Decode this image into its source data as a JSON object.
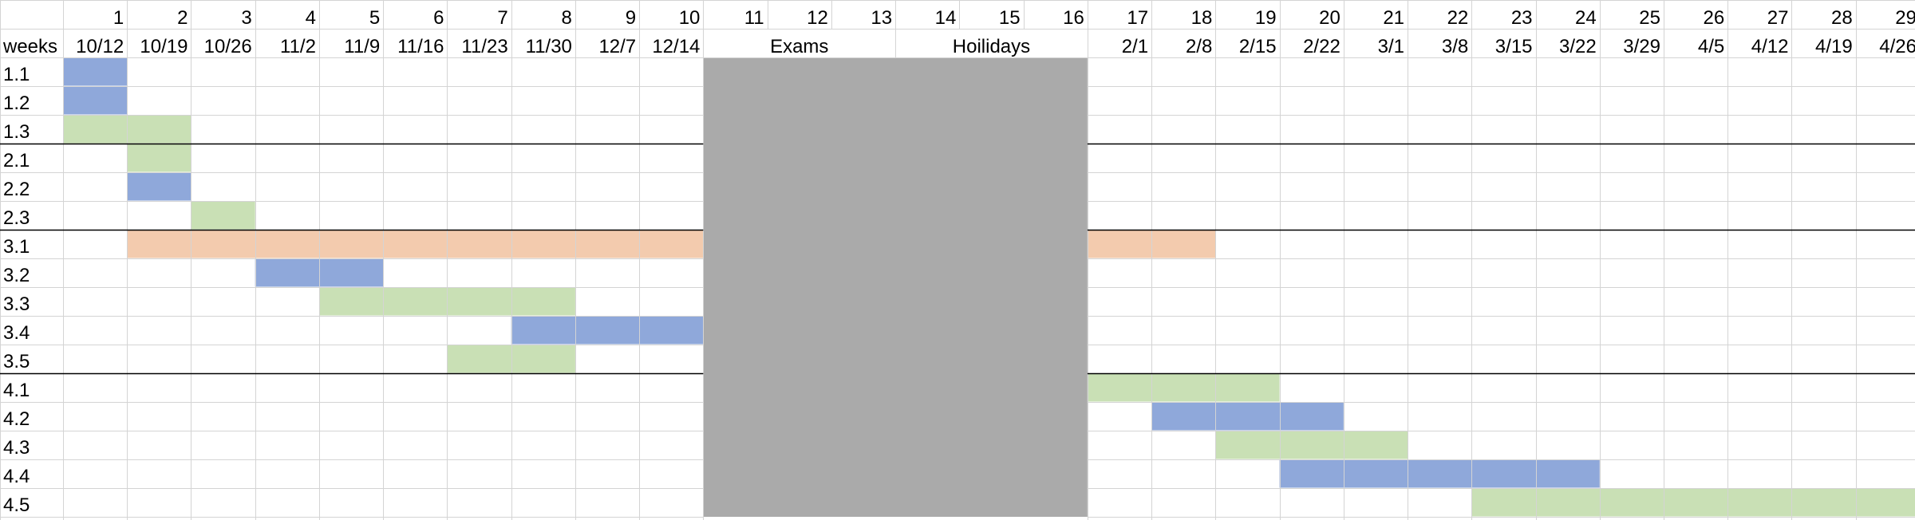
{
  "chart_data": {
    "type": "table",
    "corner_label": "weeks",
    "week_numbers": [
      "1",
      "2",
      "3",
      "4",
      "5",
      "6",
      "7",
      "8",
      "9",
      "10",
      "11",
      "12",
      "13",
      "14",
      "15",
      "16",
      "17",
      "18",
      "19",
      "20",
      "21",
      "22",
      "23",
      "24",
      "25",
      "26",
      "27",
      "28",
      "29"
    ],
    "week_dates": [
      "10/12",
      "10/19",
      "10/26",
      "11/2",
      "11/9",
      "11/16",
      "11/23",
      "11/30",
      "12/7",
      "12/14",
      "",
      "",
      "",
      "",
      "",
      "",
      "2/1",
      "2/8",
      "2/15",
      "2/22",
      "3/1",
      "3/8",
      "3/15",
      "3/22",
      "3/29",
      "4/5",
      "4/12",
      "4/19",
      "4/26"
    ],
    "merged_headers": [
      {
        "label": "Exams",
        "start_week": 11,
        "end_week": 13
      },
      {
        "label": "Hoilidays",
        "start_week": 14,
        "end_week": 16
      }
    ],
    "blocked_period": {
      "start_week": 11,
      "end_week": 16,
      "color": "#AAAAAA"
    },
    "colors": {
      "blue": "#8FA8DA",
      "green": "#C9E0B5",
      "orange": "#F3CBAE",
      "grid": "#D4D4D4",
      "separator": "#000000"
    },
    "tasks": [
      {
        "id": "1.1",
        "start_week": 1,
        "end_week": 1,
        "color": "blue"
      },
      {
        "id": "1.2",
        "start_week": 1,
        "end_week": 1,
        "color": "blue"
      },
      {
        "id": "1.3",
        "start_week": 1,
        "end_week": 2,
        "color": "green"
      },
      {
        "id": "2.1",
        "start_week": 2,
        "end_week": 2,
        "color": "green"
      },
      {
        "id": "2.2",
        "start_week": 2,
        "end_week": 2,
        "color": "blue"
      },
      {
        "id": "2.3",
        "start_week": 3,
        "end_week": 3,
        "color": "green"
      },
      {
        "id": "3.1",
        "start_week": 2,
        "end_week": 18,
        "color": "orange"
      },
      {
        "id": "3.2",
        "start_week": 4,
        "end_week": 5,
        "color": "blue"
      },
      {
        "id": "3.3",
        "start_week": 5,
        "end_week": 8,
        "color": "green"
      },
      {
        "id": "3.4",
        "start_week": 8,
        "end_week": 10,
        "color": "blue"
      },
      {
        "id": "3.5",
        "start_week": 7,
        "end_week": 8,
        "color": "green"
      },
      {
        "id": "4.1",
        "start_week": 17,
        "end_week": 19,
        "color": "green"
      },
      {
        "id": "4.2",
        "start_week": 18,
        "end_week": 20,
        "color": "blue"
      },
      {
        "id": "4.3",
        "start_week": 19,
        "end_week": 21,
        "color": "green"
      },
      {
        "id": "4.4",
        "start_week": 20,
        "end_week": 24,
        "color": "blue"
      },
      {
        "id": "4.5",
        "start_week": 23,
        "end_week": 29,
        "color": "green"
      }
    ],
    "group_separators_after": [
      "1.3",
      "2.3",
      "3.5"
    ]
  }
}
